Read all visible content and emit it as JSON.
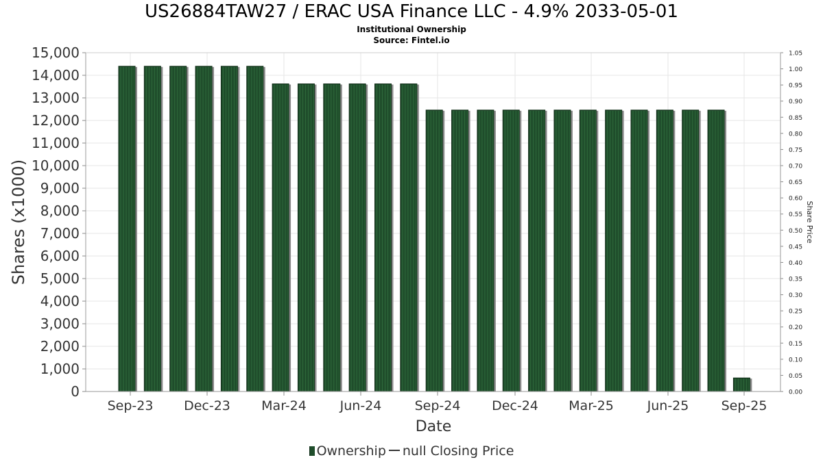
{
  "title": "US26884TAW27 / ERAC USA Finance LLC - 4.9% 2033-05-01",
  "subtitle": "Institutional Ownership",
  "source": "Source: Fintel.io",
  "legend": {
    "ownership_label": "Ownership",
    "price_label": "null Closing Price"
  },
  "colors": {
    "bar": "#1f4d2b",
    "bar_stripe": "#2f6a3c",
    "bar_shadow": "#8a8a8a",
    "grid": "#e6e6e6"
  },
  "chart_data": {
    "type": "bar",
    "xlabel": "Date",
    "ylabel": "Shares (x1000)",
    "y2label": "Share Price",
    "ylim": [
      0,
      15000
    ],
    "y2lim": [
      0,
      1.05
    ],
    "yticks": [
      "0",
      "1,000",
      "2,000",
      "3,000",
      "4,000",
      "5,000",
      "6,000",
      "7,000",
      "8,000",
      "9,000",
      "10,000",
      "11,000",
      "12,000",
      "13,000",
      "14,000",
      "15,000"
    ],
    "y2ticks": [
      "0.00",
      "0.05",
      "0.10",
      "0.15",
      "0.20",
      "0.25",
      "0.30",
      "0.35",
      "0.40",
      "0.45",
      "0.50",
      "0.55",
      "0.60",
      "0.65",
      "0.70",
      "0.75",
      "0.80",
      "0.85",
      "0.90",
      "0.95",
      "1.00",
      "1.05"
    ],
    "xticks": [
      "Sep-23",
      "Dec-23",
      "Mar-24",
      "Jun-24",
      "Sep-24",
      "Dec-24",
      "Mar-25",
      "Jun-25",
      "Sep-25"
    ],
    "grid": true,
    "legend_position": "bottom",
    "series": [
      {
        "name": "Ownership",
        "values": [
          14400,
          14400,
          14400,
          14400,
          14400,
          14400,
          13620,
          13620,
          13620,
          13620,
          13620,
          13620,
          12460,
          12460,
          12460,
          12460,
          12460,
          12460,
          12460,
          12460,
          12460,
          12460,
          12460,
          12460,
          600
        ]
      }
    ]
  }
}
